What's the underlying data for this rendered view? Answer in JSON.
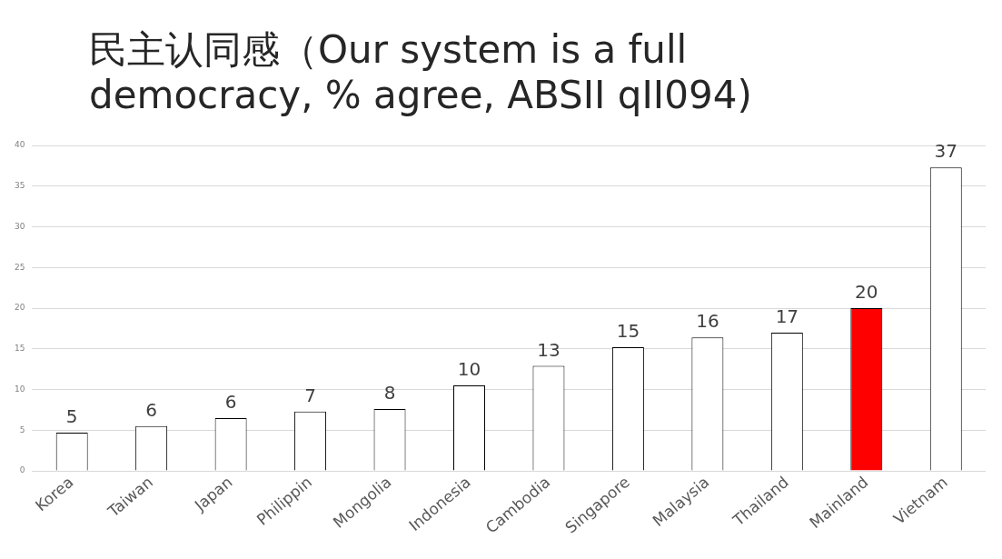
{
  "chart_data": {
    "type": "bar",
    "title": "民主认同感（Our system is a full democracy, % agree, ABSII qII094)",
    "categories": [
      "Korea",
      "Taiwan",
      "Japan",
      "Philippin",
      "Mongolia",
      "Indonesia",
      "Cambodia",
      "Singapore",
      "Malaysia",
      "Thailand",
      "Mainland",
      "Vietnam"
    ],
    "values": [
      4.7,
      5.5,
      6.5,
      7.3,
      7.6,
      10.5,
      12.9,
      15.2,
      16.4,
      17.0,
      20.0,
      37.3
    ],
    "value_labels": [
      "5",
      "6",
      "6",
      "7",
      "8",
      "10",
      "13",
      "15",
      "16",
      "17",
      "20",
      "37"
    ],
    "colors": [
      "#ffffff",
      "#ffffff",
      "#ffffff",
      "#ffffff",
      "#ffffff",
      "#ffffff",
      "#ffffff",
      "#ffffff",
      "#ffffff",
      "#ffffff",
      "#ff0000",
      "#ffffff"
    ],
    "ylim": [
      0,
      40
    ],
    "yticks": [
      0,
      5,
      10,
      15,
      20,
      25,
      30,
      35,
      40
    ],
    "grid": "y",
    "legend": false
  }
}
